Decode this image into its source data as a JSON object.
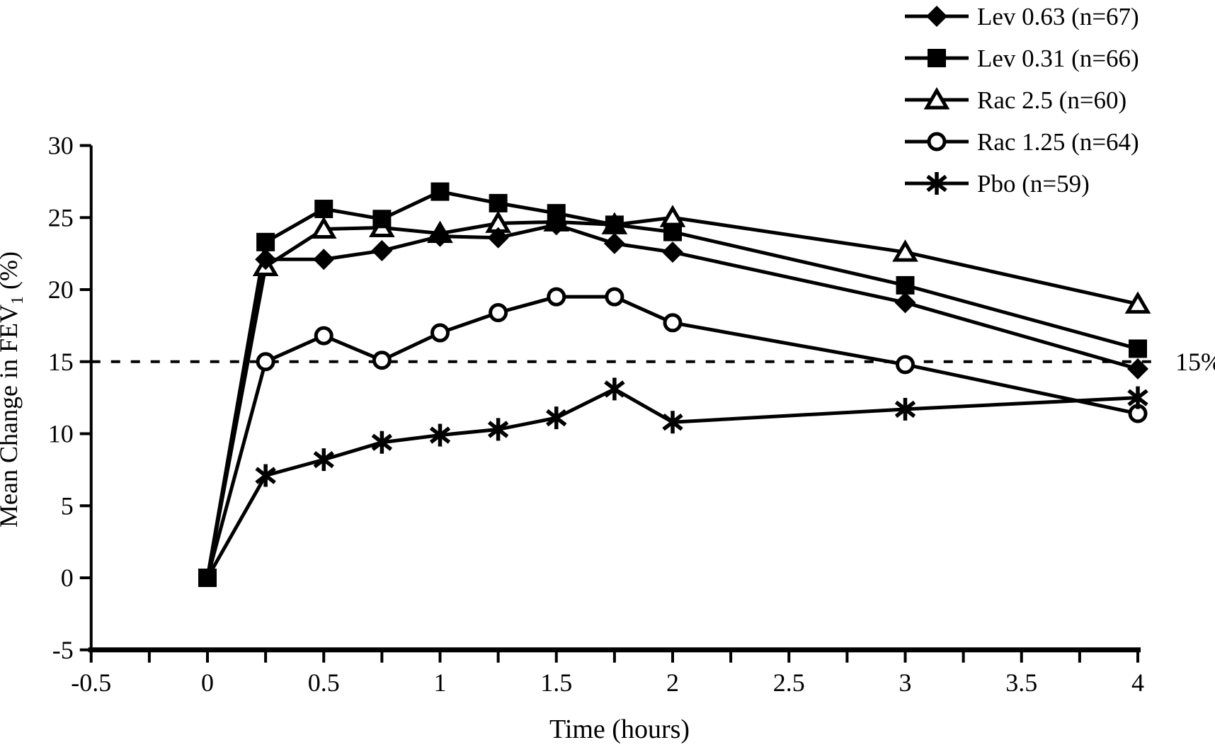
{
  "figure": {
    "background": "#ffffff",
    "ink_color": "#000000"
  },
  "chart_data": {
    "type": "line",
    "title": "",
    "xlabel": "Time (hours)",
    "ylabel": {
      "pre": "Mean Change in FEV",
      "sub": "1",
      "post": " (%)"
    },
    "xlim": [
      -0.5,
      4
    ],
    "ylim": [
      -5,
      30
    ],
    "grid": false,
    "legend_position": "top-right",
    "x": [
      0,
      0.25,
      0.5,
      0.75,
      1,
      1.25,
      1.5,
      1.75,
      2,
      3,
      4
    ],
    "series": [
      {
        "name": "Lev 0.63 (n=67)",
        "marker": "diamond-filled",
        "values": [
          0,
          22.1,
          22.1,
          22.7,
          23.7,
          23.6,
          24.5,
          23.2,
          22.6,
          19.1,
          14.5
        ]
      },
      {
        "name": "Lev 0.31 (n=66)",
        "marker": "square-filled",
        "values": [
          0,
          23.3,
          25.6,
          24.9,
          26.8,
          26.0,
          25.3,
          24.5,
          24.0,
          20.3,
          15.9
        ]
      },
      {
        "name": "Rac 2.5 (n=60)",
        "marker": "triangle-open",
        "values": [
          0,
          21.6,
          24.2,
          24.3,
          23.9,
          24.6,
          24.7,
          24.5,
          25.0,
          22.6,
          19.0
        ]
      },
      {
        "name": "Rac 1.25 (n=64)",
        "marker": "circle-open",
        "values": [
          0,
          15.0,
          16.8,
          15.1,
          17.0,
          18.4,
          19.5,
          19.5,
          17.7,
          14.8,
          11.4
        ]
      },
      {
        "name": "Pbo (n=59)",
        "marker": "asterisk",
        "values": [
          0,
          7.1,
          8.2,
          9.4,
          9.9,
          10.3,
          11.1,
          13.1,
          10.8,
          11.7,
          12.5
        ]
      }
    ],
    "reference_line": {
      "value": 15,
      "label": "15%",
      "style": "dashed"
    },
    "x_tick_labels": [
      "-0.5",
      "0",
      "0.5",
      "1",
      "1.5",
      "2",
      "2.5",
      "3",
      "3.5",
      "4"
    ],
    "x_tick_values": [
      -0.5,
      0,
      0.5,
      1,
      1.5,
      2,
      2.5,
      3,
      3.5,
      4
    ],
    "x_minor_tick_step": 0.25,
    "y_tick_labels": [
      "30",
      "25",
      "20",
      "15",
      "10",
      "5",
      "0",
      "-5"
    ],
    "y_tick_values": [
      30,
      25,
      20,
      15,
      10,
      5,
      0,
      -5
    ],
    "origin_overlap_note": "all series start at (0,0); a single filled square is visible there"
  }
}
